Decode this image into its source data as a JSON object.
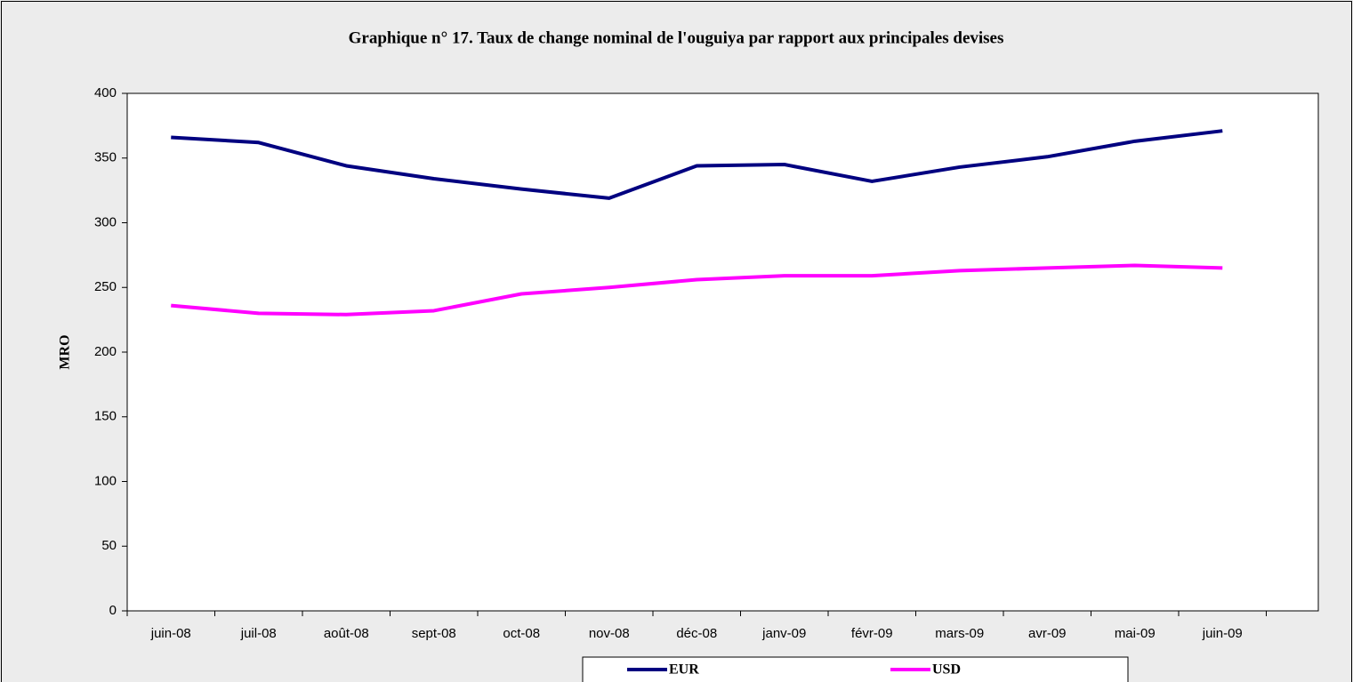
{
  "chart_data": {
    "type": "line",
    "title": "Graphique n° 17. Taux de change nominal de l'ouguiya par rapport aux principales devises",
    "y_label": "MRO",
    "categories": [
      "juin-08",
      "juil-08",
      "août-08",
      "sept-08",
      "oct-08",
      "nov-08",
      "déc-08",
      "janv-09",
      "févr-09",
      "mars-09",
      "avr-09",
      "mai-09",
      "juin-09"
    ],
    "series": [
      {
        "name": "EUR",
        "color": "#000080",
        "values": [
          366,
          362,
          344,
          334,
          326,
          319,
          344,
          345,
          332,
          343,
          351,
          363,
          371
        ]
      },
      {
        "name": "USD",
        "color": "#ff00ff",
        "values": [
          236,
          230,
          229,
          232,
          245,
          250,
          256,
          259,
          259,
          263,
          265,
          267,
          265
        ]
      }
    ],
    "ylim": [
      0,
      400
    ],
    "yticks": [
      0,
      50,
      100,
      150,
      200,
      250,
      300,
      350,
      400
    ],
    "grid": false,
    "legend": "bottom"
  }
}
